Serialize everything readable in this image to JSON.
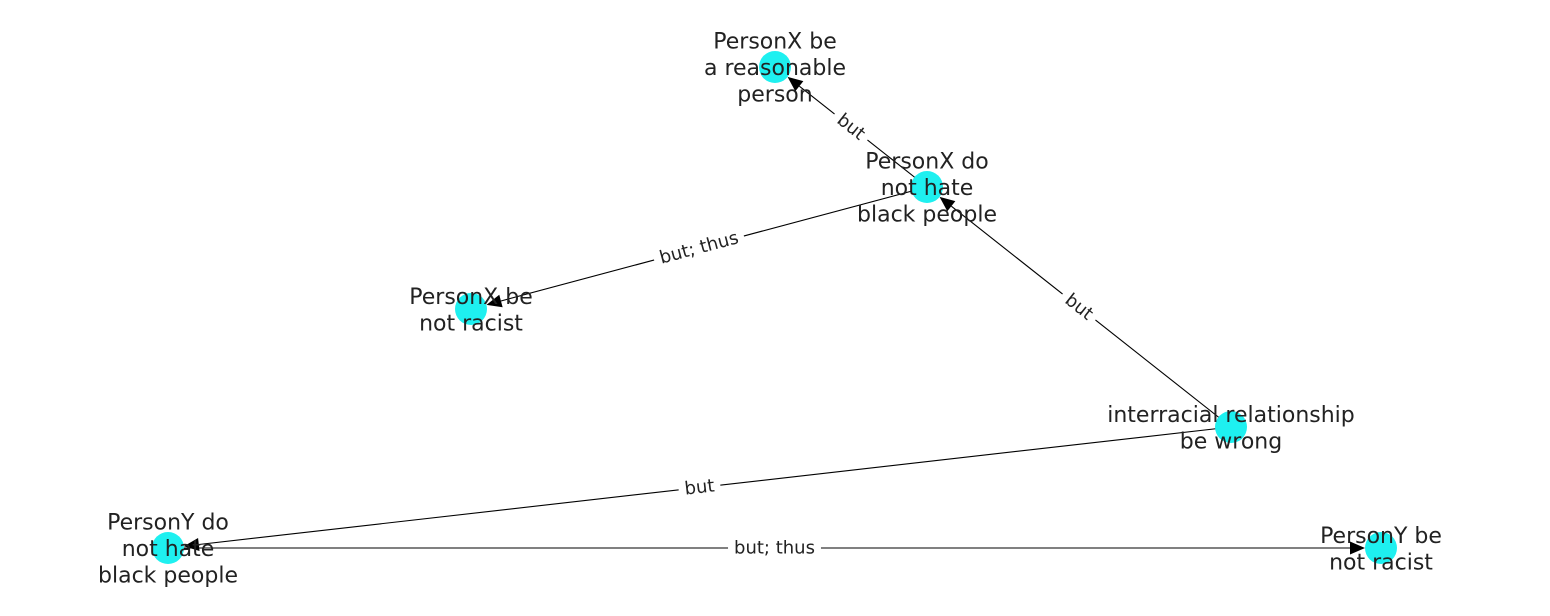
{
  "graph": {
    "node_color": "#1ef0f0",
    "edge_color": "#000000",
    "nodes": [
      {
        "id": "n1",
        "lines": [
          "PersonX be",
          "a reasonable",
          "person"
        ]
      },
      {
        "id": "n2",
        "lines": [
          "PersonX do",
          "not hate",
          "black people"
        ]
      },
      {
        "id": "n3",
        "lines": [
          "PersonX be",
          "not racist"
        ]
      },
      {
        "id": "n4",
        "lines": [
          "interracial relationship",
          "be wrong"
        ]
      },
      {
        "id": "n5",
        "lines": [
          "PersonY do",
          "not hate",
          "black people"
        ]
      },
      {
        "id": "n6",
        "lines": [
          "PersonY be",
          "not racist"
        ]
      }
    ],
    "edges": [
      {
        "from": "n2",
        "to": "n1",
        "label": "but"
      },
      {
        "from": "n2",
        "to": "n3",
        "label": "but;  thus"
      },
      {
        "from": "n4",
        "to": "n2",
        "label": "but"
      },
      {
        "from": "n4",
        "to": "n5",
        "label": "but"
      },
      {
        "from": "n5",
        "to": "n6",
        "label": "but;  thus"
      }
    ]
  }
}
